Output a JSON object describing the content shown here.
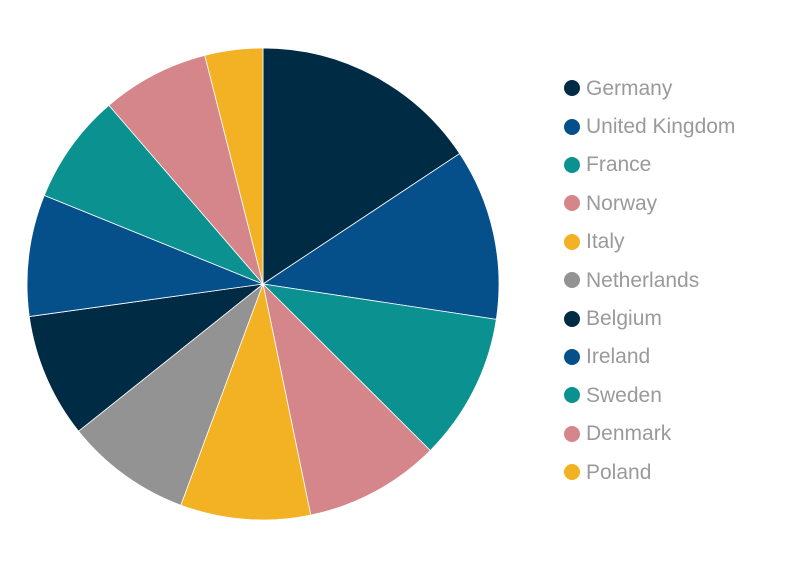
{
  "chart_data": {
    "type": "pie",
    "title": "",
    "categories": [
      "Germany",
      "United Kingdom",
      "France",
      "Norway",
      "Italy",
      "Netherlands",
      "Belgium",
      "Ireland",
      "Sweden",
      "Denmark",
      "Poland"
    ],
    "values": [
      16.2,
      12.1,
      10.4,
      9.6,
      9.2,
      8.9,
      8.8,
      8.6,
      7.8,
      7.6,
      4.1
    ],
    "colors": [
      "#002b45",
      "#05508a",
      "#0a9190",
      "#d5868b",
      "#f3b124",
      "#939393",
      "#002b45",
      "#05508a",
      "#0a9190",
      "#d5868b",
      "#f3b124"
    ],
    "start_angle": "12 o'clock",
    "direction": "clockwise",
    "legend_position": "right",
    "legend_text_color": "#9a9a9a"
  }
}
